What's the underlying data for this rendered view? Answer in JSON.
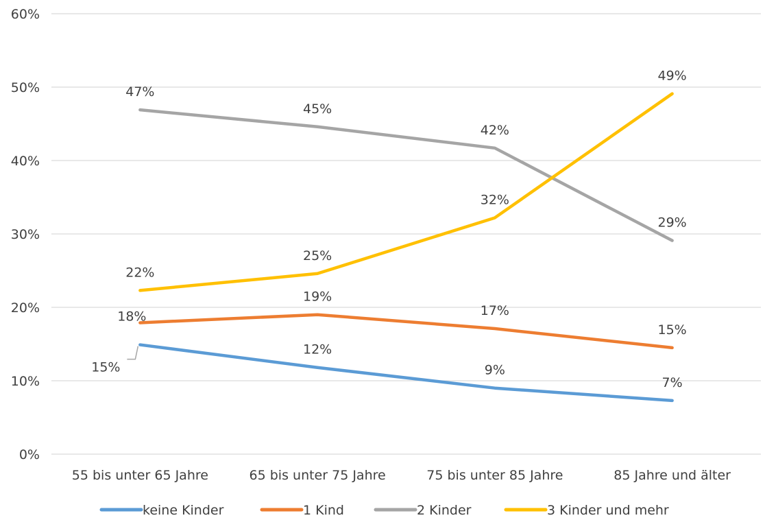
{
  "chart_data": {
    "type": "line",
    "title": "",
    "xlabel": "",
    "ylabel": "",
    "categories": [
      "55 bis unter 65 Jahre",
      "65 bis unter 75 Jahre",
      "75 bis unter 85 Jahre",
      "85 Jahre und älter"
    ],
    "ylim": [
      0,
      60
    ],
    "yticks": [
      0,
      10,
      20,
      30,
      40,
      50,
      60
    ],
    "ytick_labels": [
      "0%",
      "10%",
      "20%",
      "30%",
      "40%",
      "50%",
      "60%"
    ],
    "grid": true,
    "legend_position": "bottom",
    "series": [
      {
        "name": "keine Kinder",
        "color": "#5B9BD5",
        "values": [
          14.9,
          11.8,
          9.0,
          7.3
        ],
        "labels": [
          "15%",
          "12%",
          "9%",
          "7%"
        ]
      },
      {
        "name": "1 Kind",
        "color": "#ED7D31",
        "values": [
          17.9,
          19.0,
          17.1,
          14.5
        ],
        "labels": [
          "18%",
          "19%",
          "17%",
          "15%"
        ]
      },
      {
        "name": "2 Kinder",
        "color": "#A5A5A5",
        "values": [
          46.9,
          44.6,
          41.7,
          29.1
        ],
        "labels": [
          "47%",
          "45%",
          "42%",
          "29%"
        ]
      },
      {
        "name": "3 Kinder und mehr",
        "color": "#FFC000",
        "values": [
          22.3,
          24.6,
          32.2,
          49.1
        ],
        "labels": [
          "22%",
          "25%",
          "32%",
          "49%"
        ]
      }
    ]
  }
}
